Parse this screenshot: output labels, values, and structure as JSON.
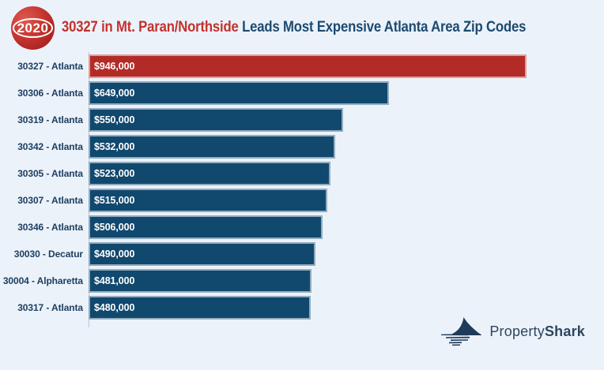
{
  "header": {
    "badge_year": "2020",
    "title_highlight": "30327 in Mt. Paran/Northside",
    "title_rest": " Leads Most Expensive Atlanta Area Zip Codes"
  },
  "chart_data": {
    "type": "bar",
    "orientation": "horizontal",
    "title": "30327 in Mt. Paran/Northside Leads Most Expensive Atlanta Area Zip Codes",
    "categories": [
      "30327 - Atlanta",
      "30306 - Atlanta",
      "30319 - Atlanta",
      "30342 - Atlanta",
      "30305 - Atlanta",
      "30307 - Atlanta",
      "30346 - Atlanta",
      "30030 - Decatur",
      "30004 - Alpharetta",
      "30317 - Atlanta"
    ],
    "values": [
      946000,
      649000,
      550000,
      532000,
      523000,
      515000,
      506000,
      490000,
      481000,
      480000
    ],
    "value_labels": [
      "$946,000",
      "$649,000",
      "$550,000",
      "$532,000",
      "$523,000",
      "$515,000",
      "$506,000",
      "$490,000",
      "$481,000",
      "$480,000"
    ],
    "xlabel": "",
    "ylabel": "",
    "xlim": [
      0,
      946000
    ],
    "grid": false,
    "legend": false,
    "highlight_index": 0,
    "bar_colors": {
      "highlight": "#B32B27",
      "default": "#11486E"
    }
  },
  "logo": {
    "brand_regular": "Property",
    "brand_bold": "Shark"
  },
  "colors": {
    "background": "#EBF2FA",
    "title_highlight": "#C3312D",
    "title_rest": "#1C4A70",
    "category_label": "#1E3F60",
    "value_label": "#FFFFFF",
    "axis_line": "#B8C8D5",
    "badge_red": "#B72D28",
    "logo_navy": "#2C4660"
  }
}
